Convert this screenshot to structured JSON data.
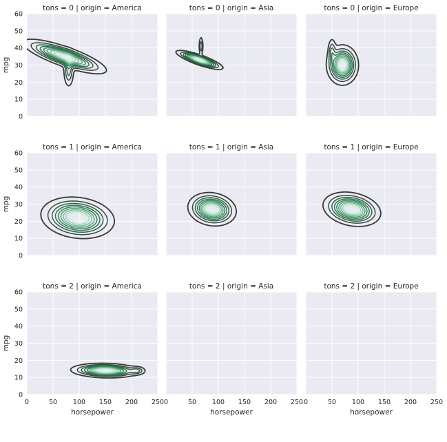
{
  "chart_data": {
    "type": "kde_contour_grid",
    "row_var": "tons",
    "col_var": "origin",
    "xlabel": "horsepower",
    "ylabel": "mpg",
    "xlim": [
      0,
      250
    ],
    "ylim": [
      0,
      60
    ],
    "xticks": [
      0,
      50,
      100,
      150,
      200,
      250
    ],
    "yticks": [
      0,
      10,
      20,
      30,
      40,
      50,
      60
    ],
    "grid": true,
    "colors": {
      "background": "#EAEAF2",
      "grid": "#FFFFFF",
      "outer_contour": "#383838",
      "inner_contour": "#2E8B57",
      "core_contour": "#C8F0DA"
    },
    "panels": [
      {
        "title": "tons = 0 | origin = America",
        "row": 0,
        "col": 0,
        "density": [
          {
            "cx": 72,
            "cy": 35,
            "sx": 10,
            "sy": 9,
            "angle": -2,
            "w": 1.0
          },
          {
            "cx": 80,
            "cy": 27,
            "sx": 5,
            "sy": 5,
            "angle": 0,
            "w": 0.35
          }
        ]
      },
      {
        "title": "tons = 0 | origin = Asia",
        "row": 0,
        "col": 1,
        "density": [
          {
            "cx": 64,
            "cy": 33,
            "sx": 5,
            "sy": 5,
            "angle": -2,
            "w": 1.0
          },
          {
            "cx": 67,
            "cy": 41,
            "sx": 2,
            "sy": 3,
            "angle": 0,
            "w": 0.25
          }
        ]
      },
      {
        "title": "tons = 0 | origin = Europe",
        "row": 0,
        "col": 2,
        "density": [
          {
            "cx": 70,
            "cy": 30,
            "sx": 13,
            "sy": 5,
            "angle": 0,
            "w": 1.0
          },
          {
            "cx": 50,
            "cy": 38,
            "sx": 4,
            "sy": 4,
            "angle": 0,
            "w": 0.25
          }
        ]
      },
      {
        "title": "tons = 1 | origin = America",
        "row": 1,
        "col": 0,
        "density": [
          {
            "cx": 97,
            "cy": 22,
            "sx": 30,
            "sy": 5,
            "angle": -0.22,
            "w": 1.0
          }
        ]
      },
      {
        "title": "tons = 1 | origin = Asia",
        "row": 1,
        "col": 1,
        "density": [
          {
            "cx": 88,
            "cy": 27,
            "sx": 20,
            "sy": 4,
            "angle": -0.4,
            "w": 1.0
          }
        ]
      },
      {
        "title": "tons = 1 | origin = Europe",
        "row": 1,
        "col": 2,
        "density": [
          {
            "cx": 88,
            "cy": 27,
            "sx": 24,
            "sy": 4,
            "angle": -0.35,
            "w": 1.0
          }
        ]
      },
      {
        "title": "tons = 2 | origin = America",
        "row": 2,
        "col": 0,
        "density": [
          {
            "cx": 150,
            "cy": 14,
            "sx": 28,
            "sy": 1.8,
            "angle": -0.03,
            "w": 1.0
          },
          {
            "cx": 210,
            "cy": 14,
            "sx": 8,
            "sy": 1.2,
            "angle": 0,
            "w": 0.25
          }
        ]
      },
      {
        "title": "tons = 2 | origin = Asia",
        "row": 2,
        "col": 1,
        "density": []
      },
      {
        "title": "tons = 2 | origin = Europe",
        "row": 2,
        "col": 2,
        "density": []
      }
    ]
  }
}
